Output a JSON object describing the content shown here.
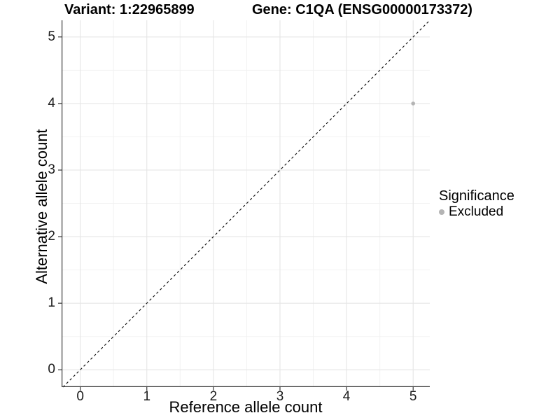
{
  "titles": {
    "variant": "Variant: 1:22965899",
    "gene": "Gene: C1QA (ENSG00000173372)"
  },
  "chart_data": {
    "type": "scatter",
    "xlabel": "Reference allele count",
    "ylabel": "Alternative allele count",
    "xlim": [
      -0.28,
      5.25
    ],
    "ylim": [
      -0.26,
      5.25
    ],
    "x_ticks": [
      0,
      1,
      2,
      3,
      4,
      5
    ],
    "y_ticks": [
      0,
      1,
      2,
      3,
      4,
      5
    ],
    "minor_gridlines": [
      0.5,
      1.5,
      2.5,
      3.5,
      4.5
    ],
    "grid": true,
    "points": [
      {
        "x": 5,
        "y": 4,
        "significance": "Excluded"
      }
    ],
    "identity_line": {
      "slope": 1,
      "intercept": 0,
      "style": "dashed"
    },
    "legend": {
      "position": "right",
      "title": "Significance",
      "entries": [
        {
          "label": "Excluded",
          "color": "#b4b4b4"
        }
      ]
    },
    "colors": {
      "point": "#b4b4b4",
      "grid_major": "#e5e5e5",
      "grid_minor": "#f2f2f2",
      "axis_line": "#383838",
      "dashed_line": "#0a0a0a",
      "tick_text": "#1a1a1a"
    }
  }
}
